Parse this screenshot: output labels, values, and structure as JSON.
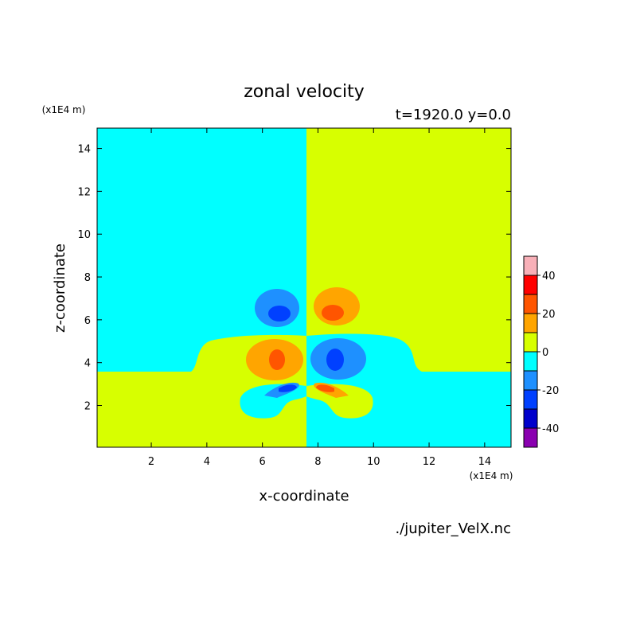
{
  "chart_data": {
    "type": "contour",
    "title": "zonal velocity",
    "subtitle": "t=1920.0 y=0.0",
    "x_label": "x-coordinate",
    "y_label": "z-coordinate",
    "x_unit": "(x1E4 m)",
    "y_unit": "(x1E4 m)",
    "source": "./jupiter_VelX.nc",
    "xlim": [
      0.05,
      14.95
    ],
    "ylim": [
      0.05,
      14.95
    ],
    "xticks": [
      2,
      4,
      6,
      8,
      10,
      12,
      14
    ],
    "yticks": [
      2,
      4,
      6,
      8,
      10,
      12,
      14
    ],
    "colorbar": {
      "levels": [
        -50,
        -40,
        -30,
        -20,
        -10,
        0,
        10,
        20,
        30,
        40,
        50
      ],
      "colors": [
        "#8a00b0",
        "#0000cc",
        "#0040ff",
        "#1e90ff",
        "#00ffff",
        "#d7ff00",
        "#ffa500",
        "#ff5500",
        "#ff0000",
        "#f8b0b8"
      ],
      "lim": [
        -50,
        50
      ],
      "ticks": [
        -40,
        -20,
        0,
        20,
        40
      ]
    }
  }
}
